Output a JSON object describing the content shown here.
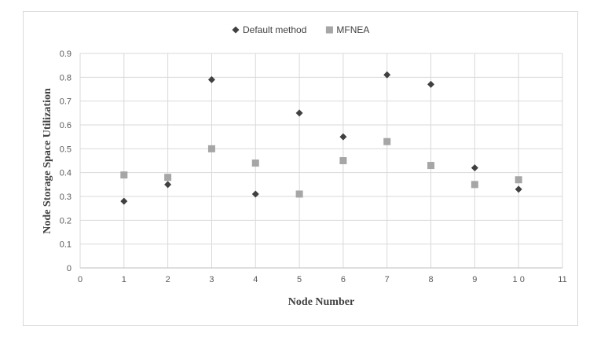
{
  "chart_data": {
    "type": "scatter",
    "title": "",
    "xlabel": "Node Number",
    "ylabel": "Node Storage Space Utilization",
    "xlim": [
      0,
      11
    ],
    "ylim": [
      0,
      0.9
    ],
    "xticks": [
      0,
      1,
      2,
      3,
      4,
      5,
      6,
      7,
      8,
      9,
      10,
      11
    ],
    "xtick_labels": [
      "0",
      "1",
      "2",
      "3",
      "4",
      "5",
      "6",
      "7",
      "8",
      "9",
      "1 0",
      "11"
    ],
    "yticks": [
      0,
      0.1,
      0.2,
      0.3,
      0.4,
      0.5,
      0.6,
      0.7,
      0.8,
      0.9
    ],
    "ytick_labels": [
      "0",
      "0.1",
      "0.2",
      "0.3",
      "0.4",
      "0.5",
      "0.6",
      "0.7",
      "0.8",
      "0.9"
    ],
    "grid": true,
    "legend_position": "top-center",
    "series": [
      {
        "name": "Default method",
        "marker": "diamond",
        "color": "#404040",
        "x": [
          1,
          2,
          3,
          4,
          5,
          6,
          7,
          8,
          9,
          10
        ],
        "y": [
          0.28,
          0.35,
          0.79,
          0.31,
          0.65,
          0.55,
          0.81,
          0.77,
          0.42,
          0.33
        ]
      },
      {
        "name": "MFNEA",
        "marker": "square",
        "color": "#a6a6a6",
        "x": [
          1,
          2,
          3,
          4,
          5,
          6,
          7,
          8,
          9,
          10
        ],
        "y": [
          0.39,
          0.38,
          0.5,
          0.44,
          0.31,
          0.45,
          0.53,
          0.43,
          0.35,
          0.37
        ]
      }
    ]
  }
}
